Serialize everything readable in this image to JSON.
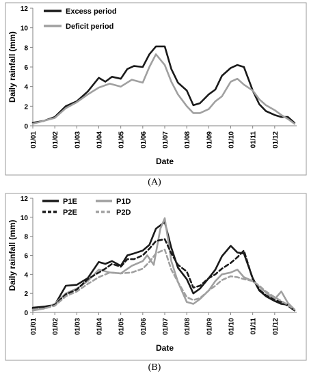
{
  "chart_data": [
    {
      "type": "line",
      "panel_label": "(A)",
      "xlabel": "Date",
      "ylabel": "Daily rainfall  (mm)",
      "ylim": [
        0,
        12
      ],
      "yticks": [
        "0",
        "2",
        "4",
        "6",
        "8",
        "10",
        "12"
      ],
      "categories": [
        "01/01",
        "01/02",
        "01/03",
        "01/04",
        "01/05",
        "01/06",
        "01/07",
        "01/08",
        "01/09",
        "01/10",
        "01/11",
        "01/12"
      ],
      "legend_position": "top-left",
      "series": [
        {
          "name": "Excess period",
          "color": "#1a1a1a",
          "dash": "",
          "x": [
            0,
            0.5,
            1,
            1.5,
            2,
            2.5,
            3,
            3.3,
            3.6,
            4,
            4.3,
            4.6,
            5,
            5.3,
            5.6,
            6,
            6.3,
            6.6,
            7,
            7.3,
            7.6,
            8,
            8.3,
            8.6,
            9,
            9.3,
            9.6,
            10,
            10.3,
            10.6,
            11,
            11.3,
            11.6,
            11.9
          ],
          "y": [
            0.3,
            0.5,
            0.9,
            2.0,
            2.5,
            3.5,
            4.9,
            4.5,
            5.0,
            4.8,
            5.8,
            6.1,
            6.0,
            7.3,
            8.1,
            8.1,
            5.8,
            4.4,
            3.6,
            2.1,
            2.3,
            3.2,
            3.7,
            5.1,
            5.9,
            6.2,
            6.0,
            3.6,
            2.2,
            1.5,
            1.1,
            0.9,
            0.9,
            0.3
          ]
        },
        {
          "name": "Deficit period",
          "color": "#a0a0a0",
          "dash": "",
          "x": [
            0,
            0.5,
            1,
            1.5,
            2,
            2.5,
            3,
            3.5,
            4,
            4.5,
            5,
            5.3,
            5.6,
            6,
            6.3,
            6.6,
            7,
            7.3,
            7.6,
            8,
            8.3,
            8.6,
            9,
            9.3,
            9.6,
            10,
            10.3,
            10.6,
            11,
            11.3,
            11.6,
            11.9
          ],
          "y": [
            0.2,
            0.5,
            0.8,
            1.8,
            2.4,
            3.2,
            3.9,
            4.3,
            4.0,
            4.7,
            4.4,
            6.0,
            7.3,
            6.2,
            4.5,
            3.2,
            2.0,
            1.3,
            1.3,
            1.7,
            2.5,
            3.0,
            4.5,
            4.8,
            4.2,
            3.6,
            2.7,
            2.1,
            1.6,
            1.1,
            0.7,
            0.2
          ]
        }
      ]
    },
    {
      "type": "line",
      "panel_label": "(B)",
      "xlabel": "Date",
      "ylabel": "Daily rainfall  (mm)",
      "ylim": [
        0,
        12
      ],
      "yticks": [
        "0",
        "2",
        "4",
        "6",
        "8",
        "10",
        "12"
      ],
      "categories": [
        "01/01",
        "01/02",
        "01/03",
        "01/04",
        "01/05",
        "01/06",
        "01/07",
        "01/08",
        "01/09",
        "01/10",
        "01/11",
        "01/12"
      ],
      "legend_position": "top-left",
      "series": [
        {
          "name": "P1E",
          "color": "#1a1a1a",
          "dash": "",
          "x": [
            0,
            0.5,
            1,
            1.5,
            2,
            2.5,
            3,
            3.3,
            3.6,
            4,
            4.3,
            4.6,
            5,
            5.3,
            5.6,
            6,
            6.3,
            6.6,
            7,
            7.3,
            7.6,
            8,
            8.3,
            8.6,
            9,
            9.3,
            9.6,
            10,
            10.3,
            10.6,
            11,
            11.3,
            11.6,
            11.9
          ],
          "y": [
            0.5,
            0.6,
            0.8,
            2.8,
            2.9,
            3.6,
            5.3,
            5.1,
            5.4,
            4.9,
            6.0,
            6.2,
            6.5,
            7.1,
            8.8,
            9.5,
            6.8,
            4.7,
            3.5,
            2.0,
            2.5,
            3.6,
            4.5,
            5.9,
            7.0,
            6.3,
            6.2,
            3.6,
            2.3,
            1.7,
            1.2,
            0.9,
            0.8,
            0.2
          ]
        },
        {
          "name": "P1D",
          "color": "#a0a0a0",
          "dash": "",
          "x": [
            0,
            0.5,
            1,
            1.5,
            2,
            2.5,
            3,
            3.5,
            4,
            4.5,
            5,
            5.2,
            5.5,
            5.8,
            6,
            6.3,
            6.6,
            7,
            7.3,
            7.6,
            8,
            8.3,
            8.6,
            9,
            9.3,
            9.6,
            10,
            10.3,
            10.6,
            11,
            11.3,
            11.6,
            11.9
          ],
          "y": [
            0.2,
            0.4,
            0.9,
            2.0,
            2.5,
            3.3,
            4.5,
            4.2,
            4.1,
            4.9,
            5.4,
            6.0,
            5.0,
            8.8,
            9.9,
            5.4,
            3.2,
            1.1,
            0.9,
            1.4,
            2.3,
            3.3,
            4.0,
            4.2,
            4.5,
            3.7,
            3.3,
            2.7,
            2.1,
            1.4,
            2.2,
            1.0,
            0.3
          ]
        },
        {
          "name": "P2E",
          "color": "#1a1a1a",
          "dash": "6,4",
          "x": [
            0,
            0.5,
            1,
            1.5,
            2,
            2.5,
            3,
            3.3,
            3.6,
            4,
            4.3,
            4.6,
            5,
            5.3,
            5.6,
            6,
            6.3,
            6.6,
            7,
            7.3,
            7.6,
            8,
            8.3,
            8.6,
            9,
            9.3,
            9.6,
            10,
            10.3,
            10.6,
            11,
            11.3,
            11.6,
            11.9
          ],
          "y": [
            0.4,
            0.5,
            0.8,
            1.9,
            2.4,
            3.5,
            4.2,
            4.6,
            5.1,
            4.8,
            5.6,
            5.6,
            6.0,
            6.7,
            7.5,
            7.7,
            6.2,
            5.0,
            4.3,
            2.6,
            2.8,
            3.6,
            4.0,
            4.6,
            5.2,
            5.8,
            6.5,
            3.5,
            2.4,
            1.8,
            1.3,
            1.1,
            0.7,
            0.2
          ]
        },
        {
          "name": "P2D",
          "color": "#a0a0a0",
          "dash": "6,4",
          "x": [
            0,
            0.5,
            1,
            1.5,
            2,
            2.5,
            3,
            3.5,
            4,
            4.5,
            5,
            5.3,
            5.6,
            6,
            6.3,
            6.6,
            7,
            7.3,
            7.6,
            8,
            8.3,
            8.6,
            9,
            9.3,
            9.6,
            10,
            10.3,
            10.6,
            11,
            11.3,
            11.6,
            11.9
          ],
          "y": [
            0.3,
            0.4,
            0.7,
            1.7,
            2.2,
            3.0,
            3.7,
            4.2,
            4.1,
            4.2,
            4.6,
            5.3,
            6.2,
            6.6,
            4.5,
            3.2,
            1.6,
            1.3,
            1.5,
            2.3,
            2.8,
            3.4,
            3.8,
            3.7,
            3.5,
            3.3,
            2.8,
            2.2,
            1.6,
            1.2,
            0.8,
            0.3
          ]
        }
      ]
    }
  ]
}
